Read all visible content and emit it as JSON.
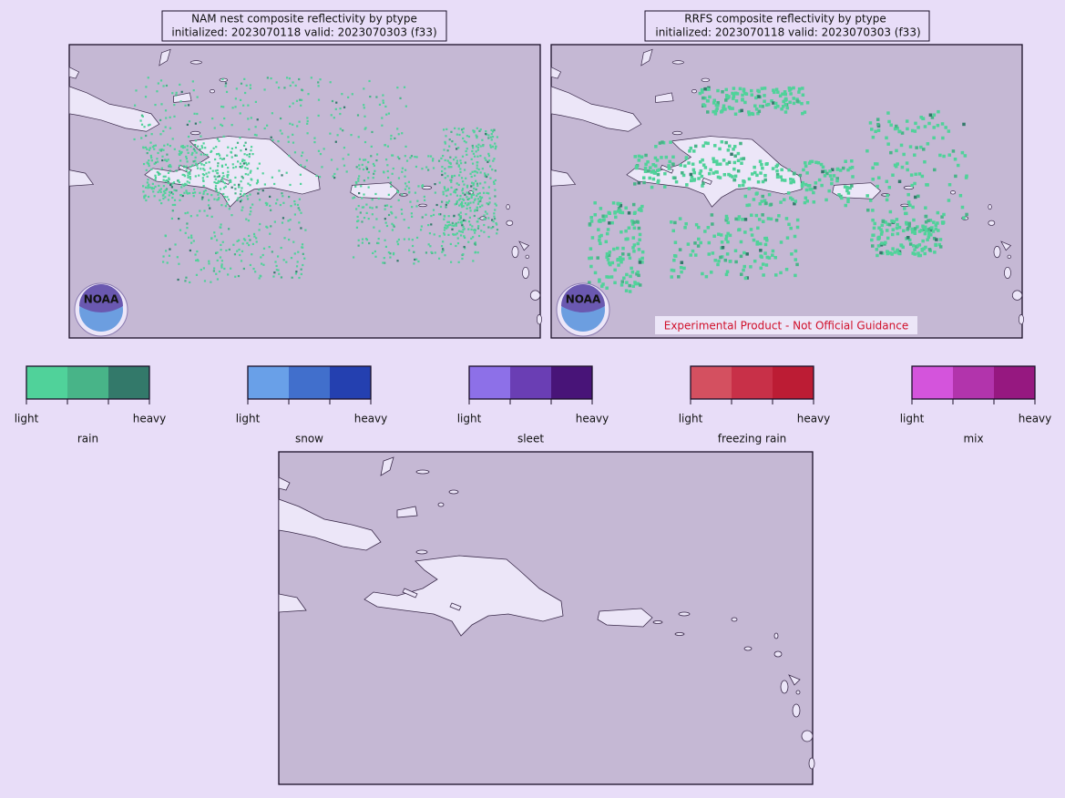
{
  "panels": [
    {
      "title": "NAM nest composite reflectivity by ptype",
      "subtitle": "initialized: 2023070118 valid: 2023070303 (f33)"
    },
    {
      "title": "RRFS composite reflectivity by ptype",
      "subtitle": "initialized: 2023070118 valid: 2023070303 (f33)",
      "watermark": "Experimental Product - Not Official Guidance"
    }
  ],
  "logo_text": "NOAA",
  "legend": {
    "low_label": "light",
    "high_label": "heavy",
    "items": [
      {
        "name": "rain",
        "colors": [
          "#50d29a",
          "#48b488",
          "#33796a"
        ]
      },
      {
        "name": "snow",
        "colors": [
          "#69a0e8",
          "#416fcc",
          "#2440b0"
        ]
      },
      {
        "name": "sleet",
        "colors": [
          "#8d70e8",
          "#6a3eb4",
          "#481478"
        ]
      },
      {
        "name": "freezing rain",
        "colors": [
          "#d45060",
          "#c83048",
          "#bc1c34"
        ]
      },
      {
        "name": "mix",
        "colors": [
          "#d454dc",
          "#b234ac",
          "#961880"
        ]
      }
    ]
  }
}
